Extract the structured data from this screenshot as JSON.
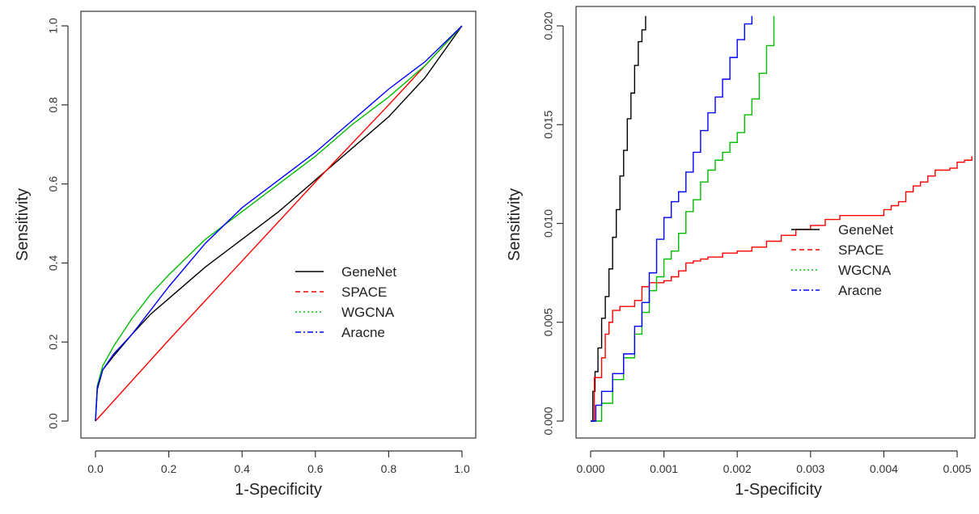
{
  "chart_data": [
    {
      "type": "line",
      "title": "",
      "xlabel": "1-Specificity",
      "ylabel": "Sensitivity",
      "xlim": [
        0,
        1
      ],
      "ylim": [
        0,
        1
      ],
      "xticks": [
        "0.0",
        "0.2",
        "0.4",
        "0.6",
        "0.8",
        "1.0"
      ],
      "yticks": [
        "0.0",
        "0.2",
        "0.4",
        "0.6",
        "0.8",
        "1.0"
      ],
      "grid": false,
      "legend": {
        "position": "bottom-right"
      },
      "series": [
        {
          "name": "GeneNet",
          "color": "#000000",
          "dash": "solid",
          "x": [
            0,
            0.005,
            0.02,
            0.05,
            0.1,
            0.15,
            0.2,
            0.3,
            0.4,
            0.5,
            0.6,
            0.7,
            0.8,
            0.9,
            1.0
          ],
          "y": [
            0,
            0.08,
            0.13,
            0.165,
            0.22,
            0.27,
            0.31,
            0.39,
            0.46,
            0.53,
            0.61,
            0.69,
            0.77,
            0.87,
            1.0
          ]
        },
        {
          "name": "SPACE",
          "color": "#ff0000",
          "dash": "solid",
          "x": [
            0,
            0.2,
            0.4,
            0.6,
            0.8,
            1.0
          ],
          "y": [
            0,
            0.205,
            0.405,
            0.605,
            0.8,
            1.0
          ]
        },
        {
          "name": "WGCNA",
          "color": "#00bb00",
          "dash": "solid",
          "x": [
            0,
            0.005,
            0.02,
            0.05,
            0.1,
            0.15,
            0.2,
            0.3,
            0.4,
            0.5,
            0.6,
            0.7,
            0.8,
            0.9,
            1.0
          ],
          "y": [
            0,
            0.09,
            0.14,
            0.19,
            0.26,
            0.32,
            0.37,
            0.46,
            0.53,
            0.6,
            0.67,
            0.75,
            0.82,
            0.9,
            1.0
          ]
        },
        {
          "name": "Aracne",
          "color": "#0000ff",
          "dash": "solid",
          "x": [
            0,
            0.005,
            0.02,
            0.05,
            0.1,
            0.15,
            0.2,
            0.3,
            0.4,
            0.5,
            0.6,
            0.7,
            0.8,
            0.9,
            1.0
          ],
          "y": [
            0,
            0.085,
            0.13,
            0.17,
            0.22,
            0.28,
            0.34,
            0.45,
            0.54,
            0.61,
            0.68,
            0.76,
            0.84,
            0.91,
            1.0
          ]
        }
      ]
    },
    {
      "type": "line",
      "title": "",
      "xlabel": "1-Specificity",
      "ylabel": "Sensitivity",
      "xlim": [
        0,
        0.0052
      ],
      "ylim": [
        0,
        0.0205
      ],
      "xticks": [
        "0.000",
        "0.001",
        "0.002",
        "0.003",
        "0.004",
        "0.005"
      ],
      "yticks": [
        "0.000",
        "0.005",
        "0.010",
        "0.015",
        "0.020"
      ],
      "grid": false,
      "legend": {
        "position": "center-right"
      },
      "series": [
        {
          "name": "GeneNet",
          "color": "#000000",
          "dash": "solid",
          "x": [
            0,
            3e-05,
            6e-05,
            0.0001,
            0.00015,
            0.0002,
            0.00025,
            0.0003,
            0.00035,
            0.0004,
            0.00045,
            0.0005,
            0.00055,
            0.0006,
            0.00065,
            0.0007,
            0.00075
          ],
          "y": [
            0,
            0.0015,
            0.0025,
            0.0037,
            0.0052,
            0.0063,
            0.0077,
            0.0093,
            0.0107,
            0.0124,
            0.0137,
            0.0153,
            0.0166,
            0.018,
            0.0192,
            0.0198,
            0.0205
          ]
        },
        {
          "name": "SPACE",
          "color": "#ff0000",
          "dash": "solid",
          "x": [
            0,
            5e-05,
            0.0001,
            0.00015,
            0.0002,
            0.00025,
            0.0003,
            0.0004,
            0.0005,
            0.0006,
            0.0007,
            0.0008,
            0.0009,
            0.001,
            0.0011,
            0.0012,
            0.0013,
            0.0014,
            0.0015,
            0.0016,
            0.0018,
            0.002,
            0.0022,
            0.0024,
            0.0026,
            0.0028,
            0.003,
            0.0032,
            0.0034,
            0.0036,
            0.0038,
            0.0039,
            0.004,
            0.0041,
            0.0042,
            0.0043,
            0.0044,
            0.0045,
            0.0046,
            0.0047,
            0.0048,
            0.0049,
            0.005,
            0.0051,
            0.0052
          ],
          "y": [
            0,
            0.0022,
            0.0022,
            0.0032,
            0.0044,
            0.005,
            0.0056,
            0.0058,
            0.0058,
            0.0061,
            0.0068,
            0.007,
            0.007,
            0.0071,
            0.0073,
            0.0076,
            0.008,
            0.0081,
            0.0082,
            0.0083,
            0.0085,
            0.0086,
            0.0088,
            0.0091,
            0.0094,
            0.0097,
            0.0099,
            0.0102,
            0.0104,
            0.0104,
            0.0104,
            0.0104,
            0.0107,
            0.0109,
            0.0111,
            0.0116,
            0.0119,
            0.0121,
            0.0124,
            0.0127,
            0.0127,
            0.0128,
            0.0131,
            0.0132,
            0.0134
          ]
        },
        {
          "name": "WGCNA",
          "color": "#00bb00",
          "dash": "solid",
          "x": [
            0,
            0.00015,
            0.0003,
            0.00045,
            0.0006,
            0.0007,
            0.0008,
            0.0009,
            0.001,
            0.0011,
            0.0012,
            0.0013,
            0.0014,
            0.0015,
            0.0016,
            0.0017,
            0.0018,
            0.0019,
            0.002,
            0.0021,
            0.0022,
            0.0023,
            0.0024,
            0.0025
          ],
          "y": [
            0,
            0.0009,
            0.0021,
            0.0032,
            0.0044,
            0.0055,
            0.0066,
            0.0073,
            0.0082,
            0.0086,
            0.0095,
            0.0106,
            0.0112,
            0.0121,
            0.0127,
            0.0132,
            0.0136,
            0.0141,
            0.0146,
            0.0155,
            0.0163,
            0.0176,
            0.019,
            0.0205
          ]
        },
        {
          "name": "Aracne",
          "color": "#0000ff",
          "dash": "solid",
          "x": [
            0,
            7e-05,
            0.00015,
            0.0003,
            0.00045,
            0.0006,
            0.0007,
            0.0008,
            0.0009,
            0.001,
            0.0011,
            0.0012,
            0.0013,
            0.0014,
            0.0015,
            0.0016,
            0.0017,
            0.0018,
            0.0019,
            0.002,
            0.0021,
            0.0022
          ],
          "y": [
            0,
            0.0008,
            0.0015,
            0.0024,
            0.0034,
            0.0048,
            0.006,
            0.0075,
            0.0092,
            0.0103,
            0.0111,
            0.0116,
            0.0126,
            0.0136,
            0.0147,
            0.0156,
            0.0164,
            0.0173,
            0.0184,
            0.0193,
            0.0201,
            0.0205
          ]
        }
      ]
    }
  ]
}
